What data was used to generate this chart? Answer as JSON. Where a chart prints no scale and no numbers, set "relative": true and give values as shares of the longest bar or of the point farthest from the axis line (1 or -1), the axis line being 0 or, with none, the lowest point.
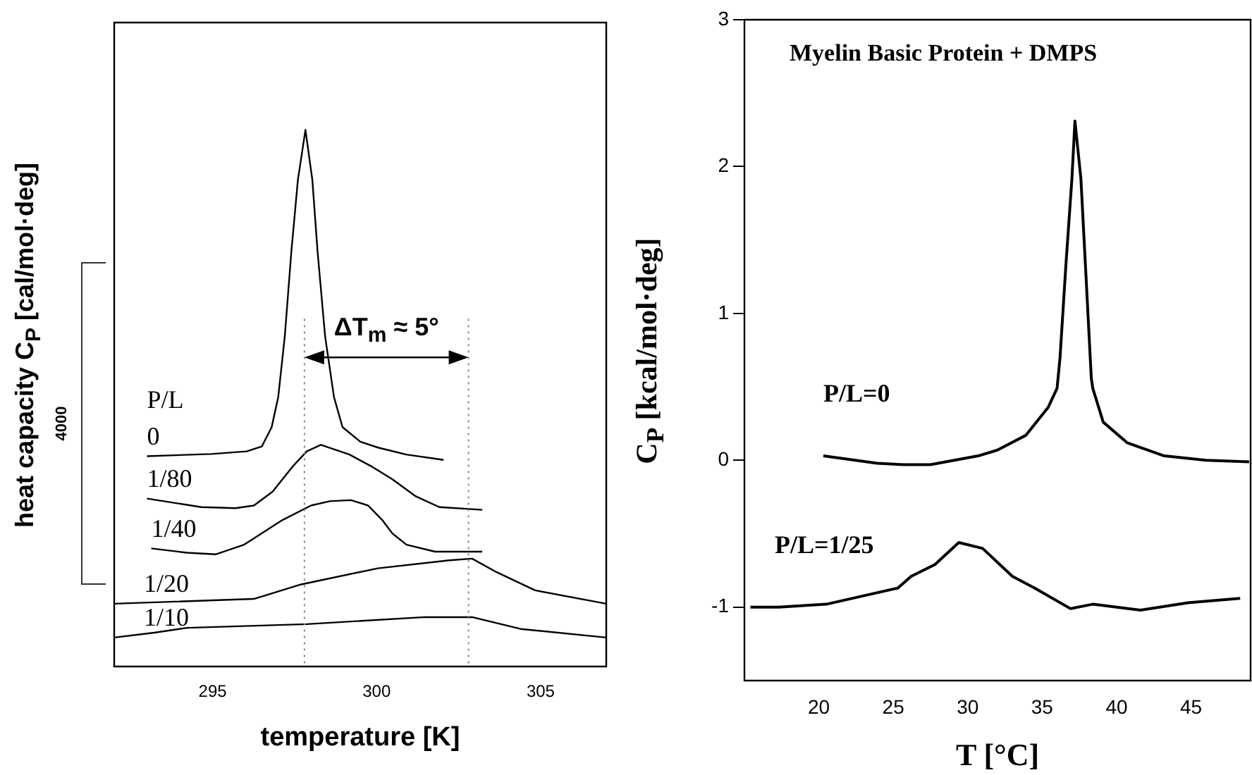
{
  "chart_data": [
    {
      "type": "line",
      "xlabel": "temperature [K]",
      "ylabel": "heat capacity C$_{P}$ [cal/mol·deg]",
      "legend_title": "P/L",
      "relative": true,
      "tick_labels": "x",
      "xlim": [
        292,
        307
      ],
      "xticks": [
        295,
        300,
        305
      ],
      "series": [
        {
          "name": "0",
          "color": "#000000",
          "x": [
            293.0,
            294.96,
            296.04,
            296.5,
            296.8,
            297.0,
            297.2,
            297.4,
            297.6,
            297.83,
            298.04,
            298.2,
            298.43,
            298.7,
            298.96,
            299.5,
            300.04,
            300.9,
            302.04
          ],
          "values": [
            0.392,
            0.396,
            0.401,
            0.41,
            0.446,
            0.502,
            0.615,
            0.773,
            0.907,
            1,
            0.907,
            0.773,
            0.615,
            0.502,
            0.446,
            0.419,
            0.408,
            0.395,
            0.385
          ]
        },
        {
          "name": "1/80",
          "color": "#000000",
          "x": [
            293.0,
            294.65,
            295.7,
            296.26,
            296.83,
            297.43,
            297.87,
            298.3,
            299.17,
            299.87,
            300.48,
            301.17,
            301.91,
            303.22
          ],
          "values": [
            0.313,
            0.297,
            0.295,
            0.3,
            0.326,
            0.372,
            0.401,
            0.413,
            0.395,
            0.372,
            0.349,
            0.318,
            0.297,
            0.292
          ]
        },
        {
          "name": "1/40",
          "color": "#000000",
          "x": [
            293.13,
            294.22,
            295.09,
            295.96,
            297.13,
            298.0,
            298.57,
            299.22,
            299.74,
            300.17,
            300.48,
            300.91,
            301.78,
            303.22
          ],
          "values": [
            0.22,
            0.212,
            0.209,
            0.227,
            0.273,
            0.3,
            0.308,
            0.31,
            0.3,
            0.273,
            0.248,
            0.227,
            0.214,
            0.214
          ]
        },
        {
          "name": "1/20",
          "color": "#000000",
          "x": [
            292.0,
            296.26,
            297.7,
            300.04,
            302.22,
            302.91,
            303.65,
            304.83,
            307.0
          ],
          "values": [
            0.117,
            0.126,
            0.153,
            0.183,
            0.198,
            0.201,
            0.176,
            0.142,
            0.117
          ]
        },
        {
          "name": "1/10",
          "color": "#000000",
          "x": [
            292.0,
            293.22,
            294.22,
            297.87,
            301.48,
            302.91,
            304.39,
            307.0
          ],
          "values": [
            0.054,
            0.063,
            0.072,
            0.079,
            0.092,
            0.092,
            0.07,
            0.054
          ]
        }
      ],
      "ref_lines": [
        {
          "axis": "x",
          "value": 297.8,
          "line_style": "dotted",
          "color": "#888888"
        },
        {
          "axis": "x",
          "value": 302.8,
          "line_style": "dotted",
          "color": "#888888"
        }
      ],
      "annotations": [
        "ΔT$_{m}$ ≈ 5°",
        "4000"
      ]
    },
    {
      "type": "line",
      "title": "Myelin Basic Protein + DMPS",
      "xlabel": "T [°C]",
      "ylabel": "C$_{P}$ [kcal/mol·deg]",
      "xlim": [
        15,
        49
      ],
      "xticks": [
        20,
        25,
        30,
        35,
        40,
        45
      ],
      "ylim": [
        -1.5,
        3
      ],
      "yticks": [
        -1,
        0,
        1,
        2,
        3
      ],
      "series": [
        {
          "name": "P/L=0",
          "color": "#000000",
          "x": [
            20.3,
            23.9,
            25.7,
            27.5,
            30.7,
            32.0,
            33.9,
            35.4,
            36.0,
            36.2,
            36.6,
            37.0,
            37.2,
            37.6,
            37.9,
            38.3,
            38.4,
            39.1,
            40.7,
            43.2,
            46.0,
            48.9
          ],
          "values": [
            0.03,
            -0.02,
            -0.03,
            -0.03,
            0.03,
            0.07,
            0.17,
            0.36,
            0.49,
            0.7,
            1.34,
            1.92,
            2.31,
            1.92,
            1.34,
            0.56,
            0.49,
            0.26,
            0.12,
            0.03,
            0.0,
            -0.01
          ]
        },
        {
          "name": "P/L=1/25",
          "color": "#000000",
          "x": [
            15.4,
            17.3,
            20.5,
            25.3,
            26.2,
            27.8,
            29.4,
            31.0,
            33.0,
            34.5,
            36.9,
            38.4,
            41.6,
            44.8,
            48.3
          ],
          "values": [
            -1.0,
            -1.0,
            -0.98,
            -0.87,
            -0.79,
            -0.71,
            -0.56,
            -0.6,
            -0.79,
            -0.87,
            -1.01,
            -0.98,
            -1.02,
            -0.97,
            -0.94
          ]
        }
      ]
    }
  ]
}
